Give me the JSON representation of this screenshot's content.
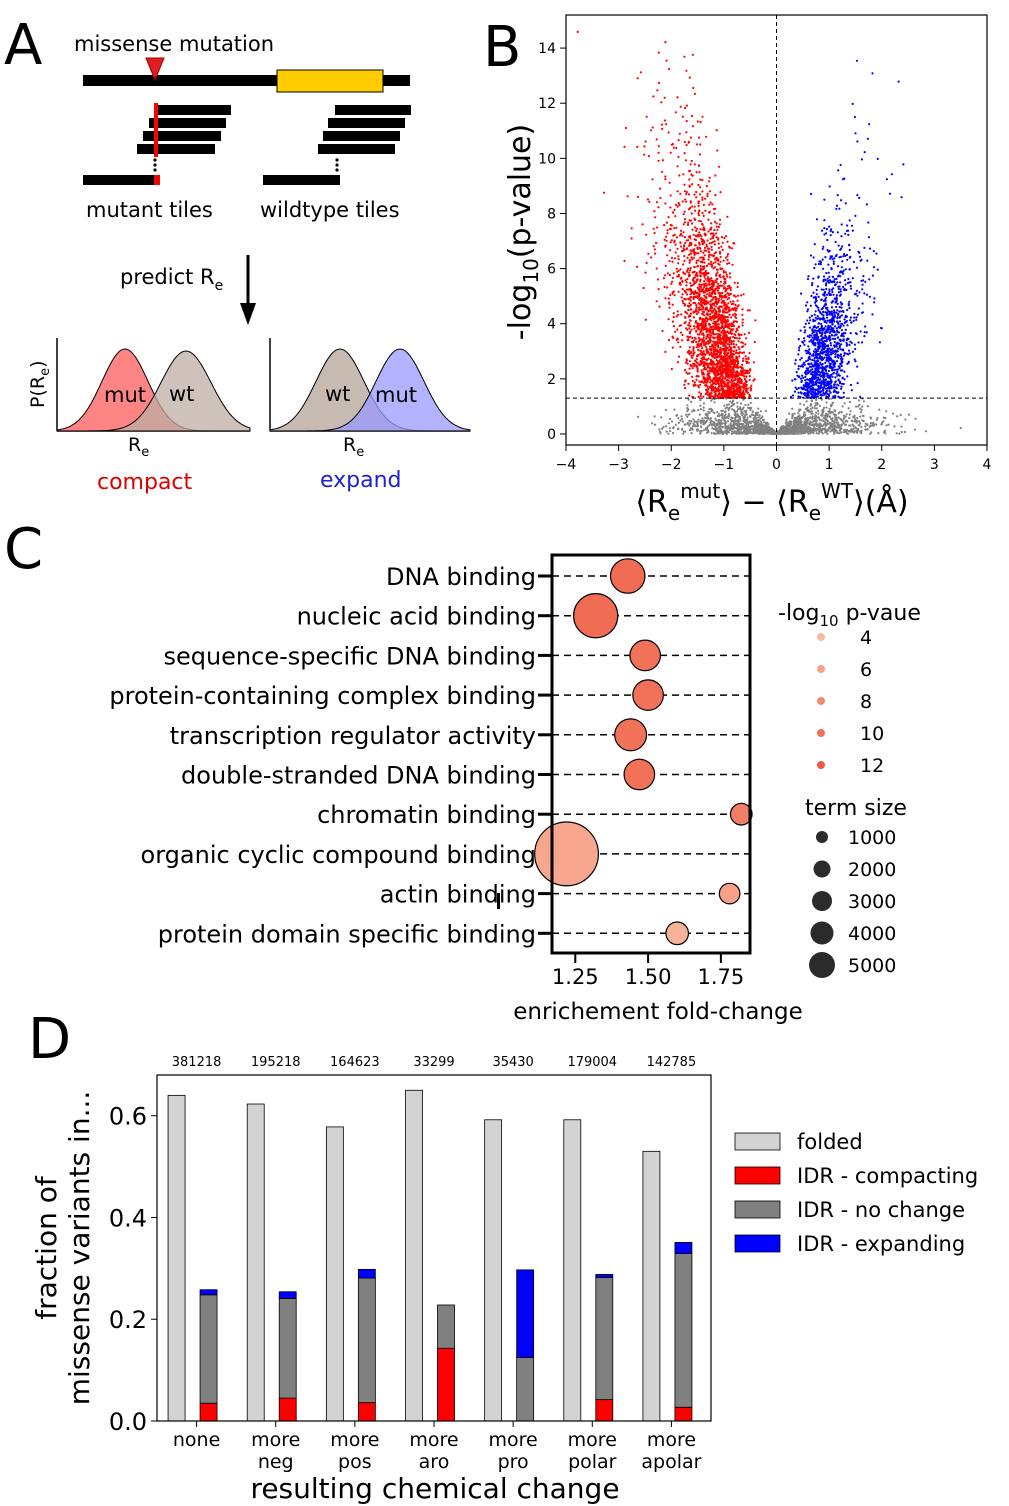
{
  "panels": {
    "A": {
      "letter": "A",
      "mutation_label": "missense mutation",
      "mutant_tiles_label": "mutant tiles",
      "wildtype_tiles_label": "wildtype tiles",
      "predict_label": "predict R",
      "predict_sub": "e",
      "density_ylabel_main": "P(R",
      "density_ylabel_sub": "e",
      "density_ylabel_close": ")",
      "density_xlabel_main": "R",
      "density_xlabel_sub": "e",
      "left_plot": {
        "label_a": "mut",
        "label_b": "wt",
        "caption": "compact"
      },
      "right_plot": {
        "label_a": "wt",
        "label_b": "mut",
        "caption": "expand"
      },
      "colors": {
        "mutation": "#ff0000",
        "domain": "#ffcc00",
        "compact": "#ff6e6e",
        "wt": "#c8bcb2",
        "expand": "#a8a8ff"
      }
    },
    "B": {
      "letter": "B",
      "chart_data": {
        "type": "scatter",
        "title": "",
        "ylabel": "-log10(p-value)",
        "xlabel": "⟨Re mut⟩ − ⟨Re WT⟩ (Å)",
        "xlim": [
          -4,
          4
        ],
        "ylim": [
          -0.4,
          15.2
        ],
        "x_ticks": [
          -4,
          -3,
          -2,
          -1,
          0,
          1,
          2,
          3,
          4
        ],
        "y_ticks": [
          0,
          2,
          4,
          6,
          8,
          10,
          12,
          14
        ],
        "threshold_y": 1.3,
        "threshold_x": 0,
        "series": [
          {
            "color": "#ff0000",
            "region": "x<0, y>1.3"
          },
          {
            "color": "#0000ff",
            "region": "x>0, y>1.3"
          },
          {
            "color": "#808080",
            "region": "y<1.3"
          }
        ]
      }
    },
    "C": {
      "letter": "C",
      "chart_data": {
        "type": "scatter",
        "title": "",
        "xlabel": "enrichement fold-change",
        "xlim": [
          1.17,
          1.85
        ],
        "x_ticks": [
          1.25,
          1.5,
          1.75
        ],
        "x_tick_labels": [
          "1.25",
          "1.50",
          "1.75"
        ],
        "categories": [
          "DNA binding",
          "nucleic acid binding",
          "sequence-specific DNA binding",
          "protein-containing complex binding",
          "transcription regulator activity",
          "double-stranded DNA binding",
          "chromatin binding",
          "organic cyclic compound binding",
          "actin binding",
          "protein domain specific binding"
        ],
        "x": [
          1.43,
          1.32,
          1.49,
          1.5,
          1.44,
          1.47,
          1.82,
          1.22,
          1.78,
          1.6
        ],
        "term_size": [
          1400,
          2300,
          1100,
          1100,
          1200,
          1100,
          550,
          4800,
          500,
          600
        ],
        "neg_log10_p": [
          10.5,
          10.5,
          10,
          10,
          10,
          10,
          9,
          5.5,
          6,
          4.5
        ],
        "legend": {
          "p_title_main": "-log",
          "p_title_sub": "10",
          "p_title_rest": " p-vaue",
          "p_values": [
            "4",
            "6",
            "8",
            "10",
            "12"
          ],
          "size_title": "term size",
          "size_values": [
            "1000",
            "2000",
            "3000",
            "4000",
            "5000"
          ]
        }
      }
    },
    "D": {
      "letter": "D",
      "chart_data": {
        "type": "bar",
        "title": "",
        "ylabel_line1": "fraction of",
        "ylabel_line2": "missense variants in...",
        "xlabel": "resulting chemical change",
        "ylim": [
          0,
          0.68
        ],
        "y_ticks": [
          0.0,
          0.2,
          0.4,
          0.6
        ],
        "y_tick_labels": [
          "0.0",
          "0.2",
          "0.4",
          "0.6"
        ],
        "categories": [
          [
            "none"
          ],
          [
            "more",
            "neg"
          ],
          [
            "more",
            "pos"
          ],
          [
            "more",
            "aro"
          ],
          [
            "more",
            "pro"
          ],
          [
            "more",
            "polar"
          ],
          [
            "more",
            "apolar"
          ]
        ],
        "counts": [
          "381218",
          "195218",
          "164623",
          "33299",
          "35430",
          "179004",
          "142785"
        ],
        "series": [
          {
            "name": "folded",
            "color": "#d3d3d3",
            "values": [
              0.64,
              0.623,
              0.578,
              0.65,
              0.592,
              0.592,
              0.53
            ]
          },
          {
            "name": "IDR - compacting",
            "color": "#ff0000",
            "values": [
              0.035,
              0.045,
              0.036,
              0.143,
              0.0,
              0.042,
              0.027
            ]
          },
          {
            "name": "IDR - no change",
            "color": "#808080",
            "values": [
              0.213,
              0.196,
              0.245,
              0.085,
              0.125,
              0.24,
              0.302
            ]
          },
          {
            "name": "IDR - expanding",
            "color": "#0000ff",
            "values": [
              0.01,
              0.013,
              0.017,
              0.0,
              0.172,
              0.006,
              0.022
            ]
          }
        ]
      }
    }
  }
}
